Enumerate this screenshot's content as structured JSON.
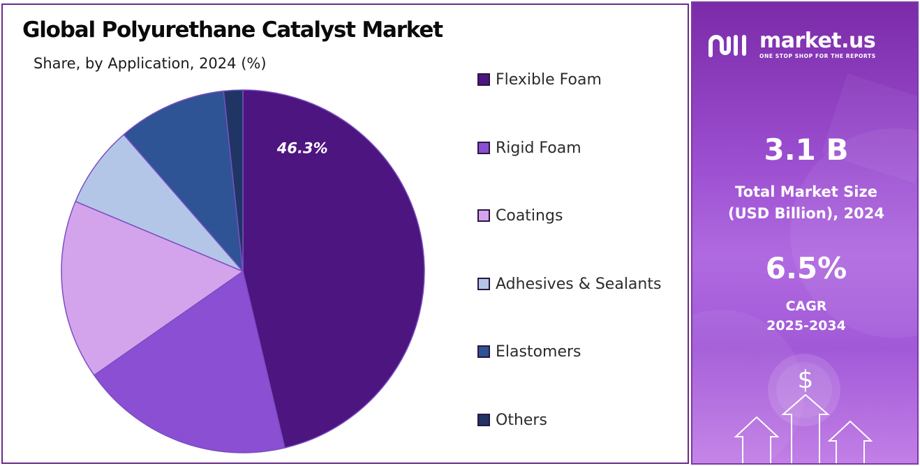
{
  "chart_data": {
    "type": "pie",
    "title": "Global Polyurethane Catalyst Market",
    "subtitle": "Share, by Application, 2024 (%)",
    "categories": [
      "Flexible Foam",
      "Rigid Foam",
      "Coatings",
      "Adhesives & Sealants",
      "Elastomers",
      "Others"
    ],
    "values": [
      46.3,
      19.0,
      16.0,
      7.3,
      9.7,
      1.7
    ],
    "colors": [
      "#4d1580",
      "#8a4fd3",
      "#d3a4ec",
      "#b4c6e8",
      "#2e5496",
      "#1f3564"
    ],
    "data_labels": [
      "46.3%",
      "",
      "",
      "",
      "",
      ""
    ],
    "legend_position": "right"
  },
  "sidebar": {
    "brand_name": "market.us",
    "brand_tagline": "ONE STOP SHOP FOR THE REPORTS",
    "market_size_value": "3.1 B",
    "market_size_label_line1": "Total Market Size",
    "market_size_label_line2": "(USD Billion), 2024",
    "cagr_value": "6.5%",
    "cagr_label_line1": "CAGR",
    "cagr_label_line2": "2025-2034",
    "icon_names": [
      "market-us-logo-icon",
      "dollar-icon",
      "arrow-up-icon"
    ]
  }
}
